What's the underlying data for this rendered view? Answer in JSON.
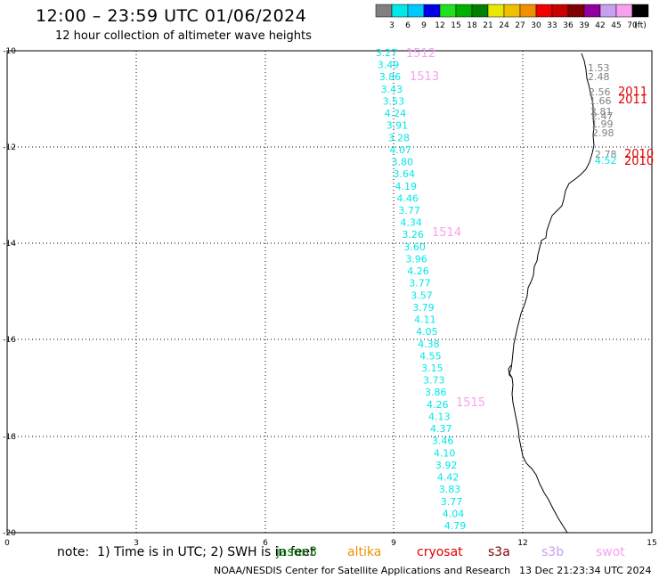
{
  "header": {
    "title": "12:00 – 23:59 UTC 01/06/2024",
    "subtitle": "12 hour collection of altimeter wave heights"
  },
  "legend": {
    "colors": [
      "#808080",
      "#00e8e8",
      "#00c8ff",
      "#0000e8",
      "#20e020",
      "#00b000",
      "#008000",
      "#e8e800",
      "#f0c000",
      "#f09000",
      "#f00000",
      "#c80000",
      "#800000",
      "#9000a0",
      "#c8a0f0",
      "#f8a0f0",
      "#000000"
    ],
    "labels": [
      "3",
      "6",
      "9",
      "12",
      "15",
      "18",
      "21",
      "24",
      "27",
      "30",
      "33",
      "36",
      "39",
      "42",
      "45",
      "70",
      "(ft)"
    ]
  },
  "map": {
    "x_ticks": [
      "0",
      "3",
      "6",
      "9",
      "12",
      "15"
    ],
    "y_ticks": [
      "-10",
      "-12",
      "-14",
      "-16",
      "-18",
      "-20"
    ],
    "track_color": "#00e8e8",
    "wave_heights": [
      "3.27",
      "3.49",
      "3.86",
      "3.43",
      "3.53",
      "4.24",
      "3.91",
      "3.28",
      "4.07",
      "3.80",
      "3.64",
      "4.19",
      "4.46",
      "3.77",
      "4.34",
      "3.26",
      "3.60",
      "3.96",
      "4.26",
      "3.77",
      "3.57",
      "3.79",
      "4.11",
      "4.05",
      "4.38",
      "4.55",
      "3.15",
      "3.73",
      "3.86",
      "4.26",
      "4.13",
      "4.37",
      "3.46",
      "4.10",
      "3.92",
      "4.42",
      "3.83",
      "3.77",
      "4.04",
      "4.79"
    ],
    "pass_labels": [
      {
        "text": "1512",
        "color": "#f8a0f0"
      },
      {
        "text": "1513",
        "color": "#f8a0f0"
      },
      {
        "text": "1514",
        "color": "#f8a0f0"
      },
      {
        "text": "1515",
        "color": "#f8a0f0"
      }
    ],
    "coastal_values": [
      {
        "text": "1.53",
        "color": "#808080"
      },
      {
        "text": "2.48",
        "color": "#808080"
      },
      {
        "text": "2.56",
        "color": "#808080"
      },
      {
        "text": "1.66",
        "color": "#808080"
      },
      {
        "text": "2.81",
        "color": "#808080"
      },
      {
        "text": "2.47",
        "color": "#808080"
      },
      {
        "text": "1.99",
        "color": "#808080"
      },
      {
        "text": "2.98",
        "color": "#808080"
      },
      {
        "text": "2.78",
        "color": "#808080"
      },
      {
        "text": "4.52",
        "color": "#00e8e8"
      }
    ],
    "coastal_passes": [
      {
        "text": "2011",
        "color": "#e00000"
      },
      {
        "text": "2011",
        "color": "#e00000"
      },
      {
        "text": "2010",
        "color": "#e00000"
      },
      {
        "text": "2010",
        "color": "#e00000"
      }
    ]
  },
  "footer": {
    "note": "note:  1) Time is in UTC; 2) SWH is in feet",
    "missions": [
      {
        "name": "jason3",
        "color": "#008000"
      },
      {
        "name": "altika",
        "color": "#f09000"
      },
      {
        "name": "cryosat",
        "color": "#e00000"
      },
      {
        "name": "s3a",
        "color": "#800000"
      },
      {
        "name": "s3b",
        "color": "#c8a0f0"
      },
      {
        "name": "swot",
        "color": "#f8a0f0"
      }
    ],
    "credit": "NOAA/NESDIS Center for Satellite Applications and Research",
    "timestamp": "13 Dec 21:23:34 UTC 2024"
  }
}
